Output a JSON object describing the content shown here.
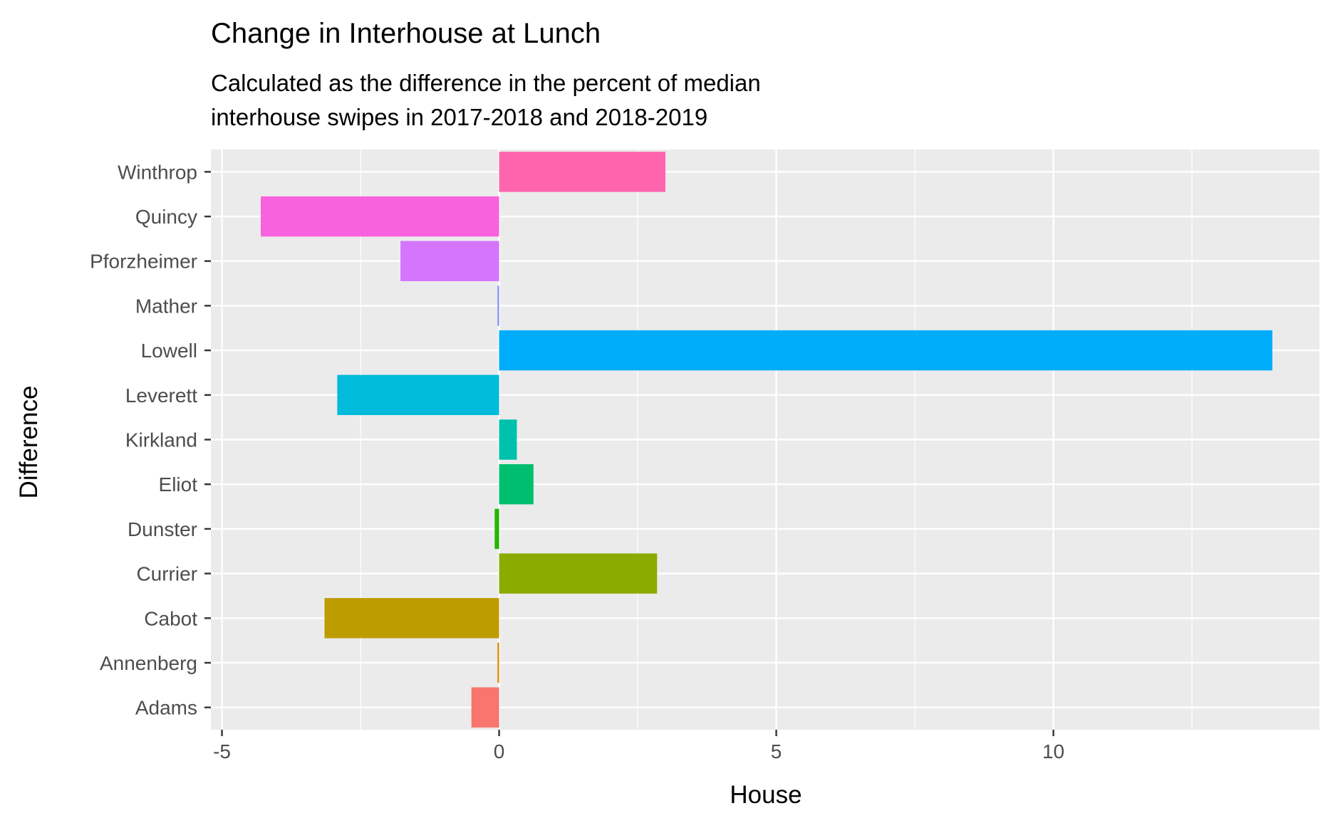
{
  "chart_data": {
    "type": "bar",
    "orientation": "horizontal",
    "title": "Change in Interhouse at Lunch",
    "subtitle_lines": [
      "Calculated as the difference in the percent of median",
      "interhouse swipes in 2017-2018 and 2018-2019"
    ],
    "xlabel": "House",
    "ylabel": "Difference",
    "categories": [
      "Adams",
      "Annenberg",
      "Cabot",
      "Currier",
      "Dunster",
      "Eliot",
      "Kirkland",
      "Leverett",
      "Lowell",
      "Mather",
      "Pforzheimer",
      "Quincy",
      "Winthrop"
    ],
    "values": [
      -0.5,
      -0.03,
      -3.15,
      2.85,
      -0.08,
      0.62,
      0.32,
      -2.92,
      13.95,
      -0.03,
      -1.78,
      -4.3,
      3.0
    ],
    "colors": [
      "#F8766D",
      "#E18A00",
      "#BE9C00",
      "#8CAB00",
      "#24B700",
      "#00BE70",
      "#00C1AB",
      "#00BBDA",
      "#00ACFC",
      "#8B93FF",
      "#D575FE",
      "#F962DD",
      "#FF65AC"
    ],
    "xlim": [
      -5.2,
      14.8
    ],
    "x_ticks": [
      -5,
      0,
      5,
      10
    ],
    "x_tick_labels": [
      "-5",
      "0",
      "5",
      "10"
    ],
    "grid": true,
    "panel_background": "#EBEBEB",
    "grid_color": "#FFFFFF",
    "legend": "none"
  }
}
